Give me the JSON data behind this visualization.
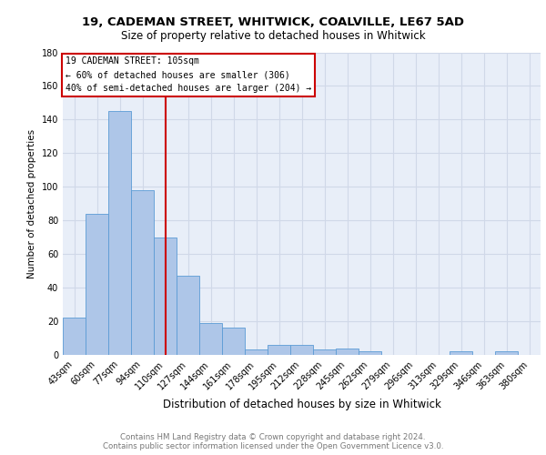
{
  "title1": "19, CADEMAN STREET, WHITWICK, COALVILLE, LE67 5AD",
  "title2": "Size of property relative to detached houses in Whitwick",
  "xlabel": "Distribution of detached houses by size in Whitwick",
  "ylabel": "Number of detached properties",
  "categories": [
    "43sqm",
    "60sqm",
    "77sqm",
    "94sqm",
    "110sqm",
    "127sqm",
    "144sqm",
    "161sqm",
    "178sqm",
    "195sqm",
    "212sqm",
    "228sqm",
    "245sqm",
    "262sqm",
    "279sqm",
    "296sqm",
    "313sqm",
    "329sqm",
    "346sqm",
    "363sqm",
    "380sqm"
  ],
  "values": [
    22,
    84,
    145,
    98,
    70,
    47,
    19,
    16,
    3,
    6,
    6,
    3,
    4,
    2,
    0,
    0,
    0,
    2,
    0,
    2,
    0
  ],
  "bar_color": "#aec6e8",
  "bar_edge_color": "#5b9bd5",
  "red_line_x": 4.5,
  "annotation_text": "19 CADEMAN STREET: 105sqm\n← 60% of detached houses are smaller (306)\n40% of semi-detached houses are larger (204) →",
  "annotation_box_color": "#ffffff",
  "annotation_box_edge_color": "#cc0000",
  "footer1": "Contains HM Land Registry data © Crown copyright and database right 2024.",
  "footer2": "Contains public sector information licensed under the Open Government Licence v3.0.",
  "ylim": [
    0,
    180
  ],
  "yticks": [
    0,
    20,
    40,
    60,
    80,
    100,
    120,
    140,
    160,
    180
  ],
  "grid_color": "#d0d8e8",
  "bg_color": "#e8eef8"
}
